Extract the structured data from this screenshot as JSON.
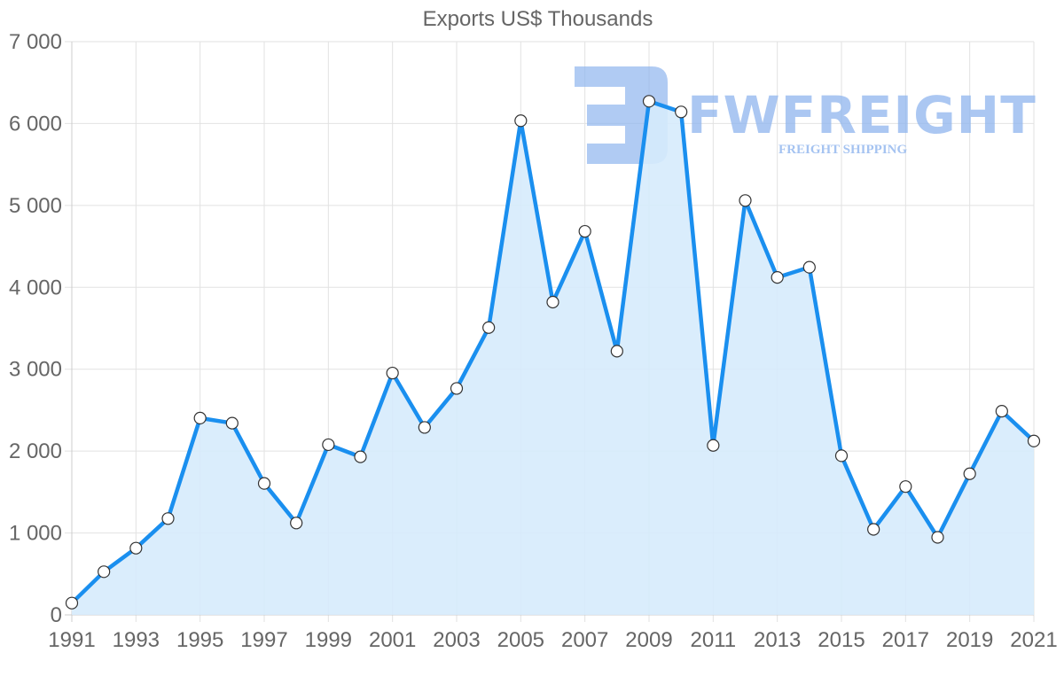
{
  "chart_data": {
    "type": "line",
    "title": "Exports US$ Thousands",
    "xlabel": "",
    "ylabel": "",
    "x": [
      1991,
      1992,
      1993,
      1994,
      1995,
      1996,
      1997,
      1998,
      1999,
      2000,
      2001,
      2002,
      2003,
      2004,
      2005,
      2006,
      2007,
      2008,
      2009,
      2010,
      2011,
      2012,
      2013,
      2014,
      2015,
      2016,
      2017,
      2018,
      2019,
      2020,
      2021
    ],
    "series": [
      {
        "name": "Exports US$ Thousands",
        "values": [
          144,
          527,
          815,
          1176,
          2403,
          2341,
          1605,
          1122,
          2078,
          1930,
          2953,
          2289,
          2765,
          3508,
          6034,
          3819,
          4684,
          3220,
          6272,
          6142,
          2069,
          5060,
          4121,
          4245,
          1943,
          1044,
          1567,
          947,
          1723,
          2487,
          2123
        ]
      }
    ],
    "xticks": [
      "1991",
      "1993",
      "1995",
      "1997",
      "1999",
      "2001",
      "2003",
      "2005",
      "2007",
      "2009",
      "2011",
      "2013",
      "2015",
      "2017",
      "2019",
      "2021"
    ],
    "yticks": [
      "0",
      "1 000",
      "2 000",
      "3 000",
      "4 000",
      "5 000",
      "6 000",
      "7 000"
    ],
    "ylim": [
      0,
      7000
    ],
    "xlim": [
      1991,
      2021
    ],
    "grid": true,
    "area_fill": true,
    "legend": "none",
    "colors": {
      "line": "#1a8fef",
      "fill": "#d6ebfc",
      "point_fill": "#ffffff",
      "point_stroke": "#333333",
      "grid": "#e2e2e2",
      "text": "#666666"
    }
  },
  "watermark": {
    "brand": "FWFREIGHT",
    "tagline": "FREIGHT SHIPPING"
  }
}
